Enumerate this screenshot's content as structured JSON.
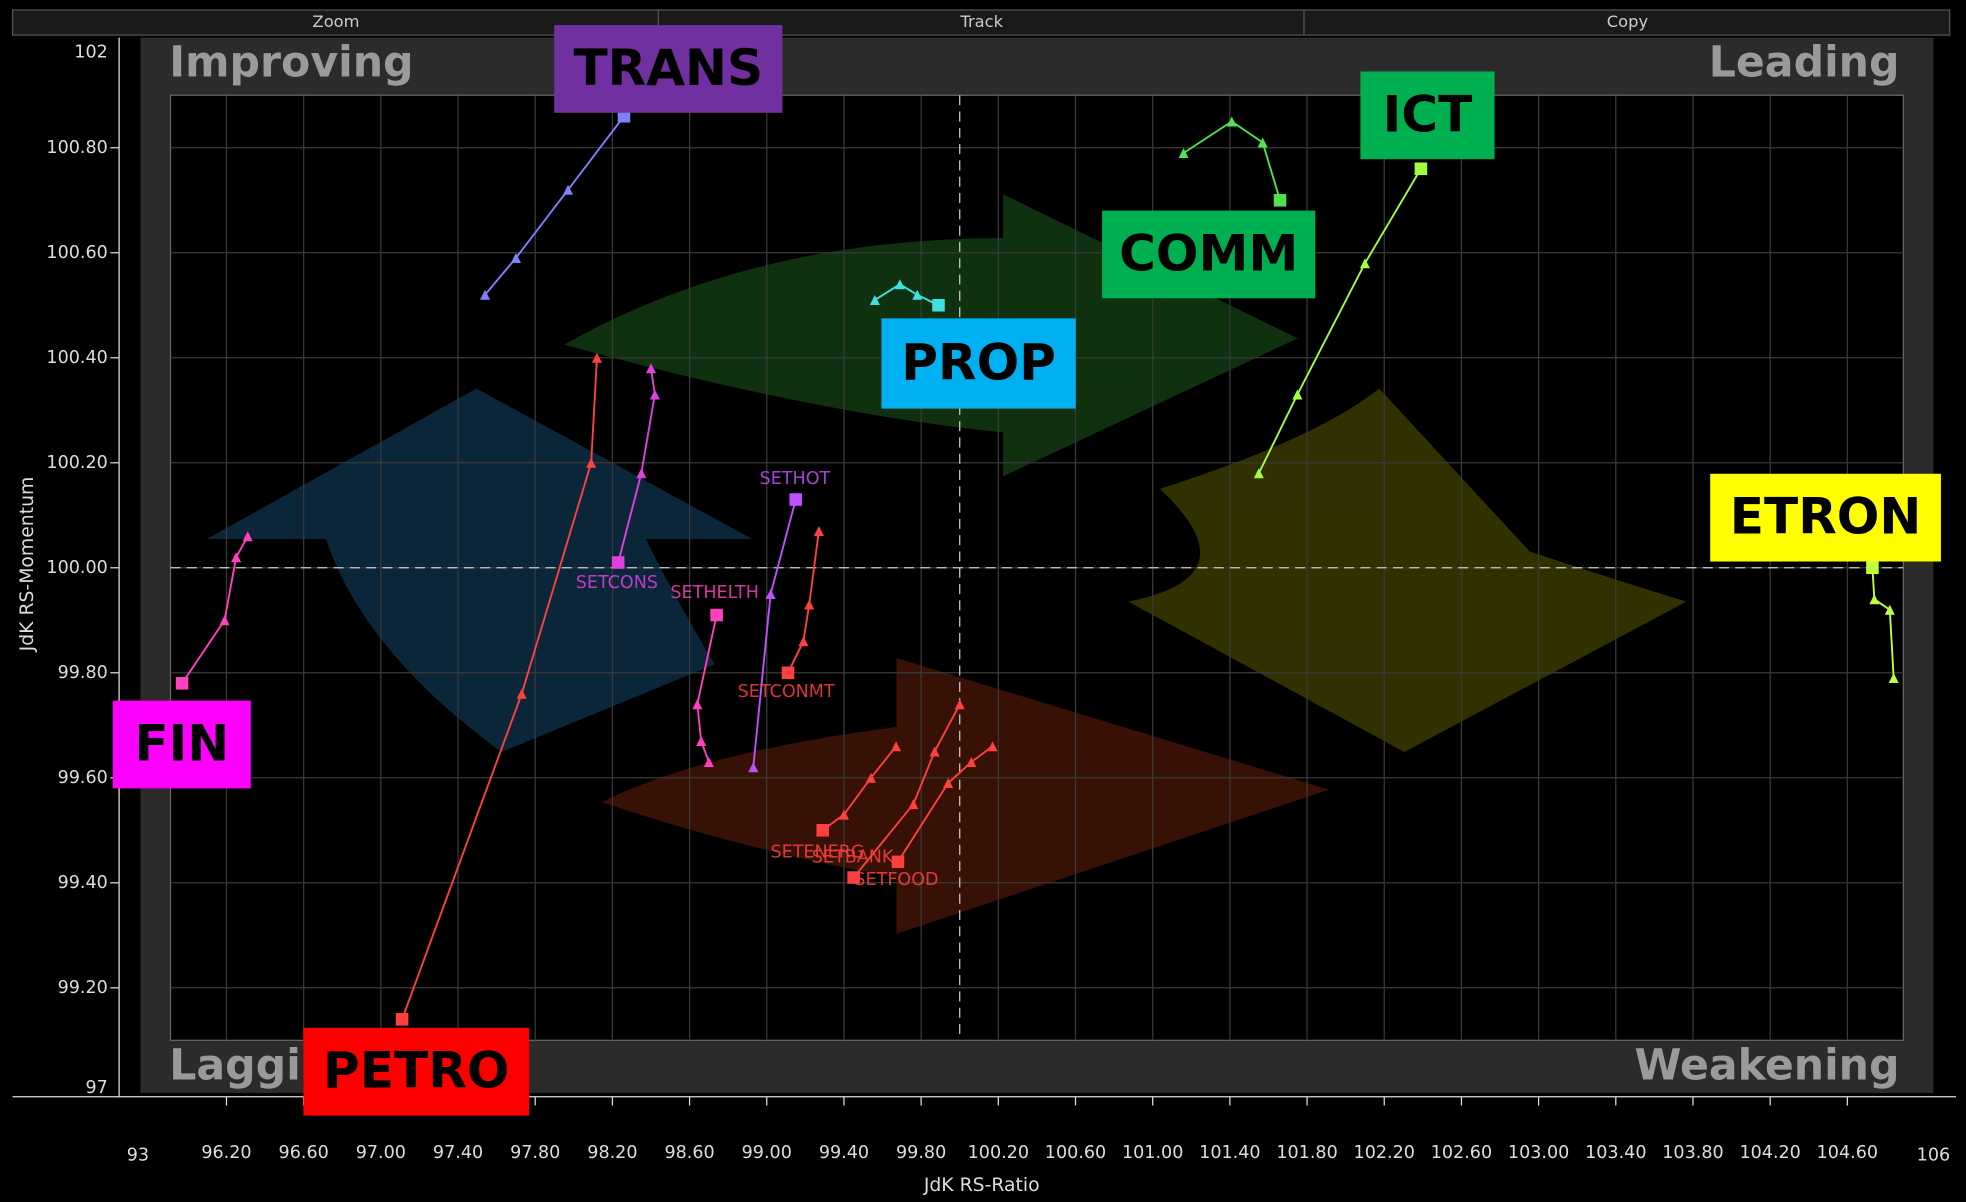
{
  "toolbar": [
    "Zoom",
    "Track",
    "Copy"
  ],
  "chart_data": {
    "type": "rrg",
    "x_label": "JdK RS-Ratio",
    "y_label": "JdK RS-Momentum",
    "quadrants": [
      "Improving",
      "Leading",
      "Lagging",
      "Weakening"
    ],
    "xlim": [
      95.91,
      104.89
    ],
    "ylim": [
      99.1,
      100.9
    ],
    "x_ends": [
      93,
      106
    ],
    "y_ends": [
      97,
      102
    ],
    "xcenter": 100,
    "ycenter": 100,
    "xticks": [
      {
        "value": 96.2,
        "label": "96.20"
      },
      {
        "value": 96.6,
        "label": "96.60"
      },
      {
        "value": 97.0,
        "label": "97.00"
      },
      {
        "value": 97.4,
        "label": "97.40"
      },
      {
        "value": 97.8,
        "label": "97.80"
      },
      {
        "value": 98.2,
        "label": "98.20"
      },
      {
        "value": 98.6,
        "label": "98.60"
      },
      {
        "value": 99.0,
        "label": "99.00"
      },
      {
        "value": 99.4,
        "label": "99.40"
      },
      {
        "value": 99.8,
        "label": "99.80"
      },
      {
        "value": 100.2,
        "label": "100.20"
      },
      {
        "value": 100.6,
        "label": "100.60"
      },
      {
        "value": 101.0,
        "label": "101.00"
      },
      {
        "value": 101.4,
        "label": "101.40"
      },
      {
        "value": 101.8,
        "label": "101.80"
      },
      {
        "value": 102.2,
        "label": "102.20"
      },
      {
        "value": 102.6,
        "label": "102.60"
      },
      {
        "value": 103.0,
        "label": "103.00"
      },
      {
        "value": 103.4,
        "label": "103.40"
      },
      {
        "value": 103.8,
        "label": "103.80"
      },
      {
        "value": 104.2,
        "label": "104.20"
      },
      {
        "value": 104.6,
        "label": "104.60"
      }
    ],
    "yticks": [
      {
        "value": 99.2,
        "label": "99.20"
      },
      {
        "value": 99.4,
        "label": "99.40"
      },
      {
        "value": 99.6,
        "label": "99.60"
      },
      {
        "value": 99.8,
        "label": "99.80"
      },
      {
        "value": 100.0,
        "label": "100.00"
      },
      {
        "value": 100.2,
        "label": "100.20"
      },
      {
        "value": 100.4,
        "label": "100.40"
      },
      {
        "value": 100.6,
        "label": "100.60"
      },
      {
        "value": 100.8,
        "label": "100.80"
      }
    ],
    "series": [
      {
        "name": "TRANS",
        "color": "#8080ff",
        "label_color": "#7030a0",
        "x": [
          97.54,
          97.7,
          97.97,
          98.26
        ],
        "y": [
          100.52,
          100.59,
          100.72,
          100.86
        ]
      },
      {
        "name": "PROP",
        "color": "#40e0e0",
        "label_color": "#00b0f0",
        "x": [
          99.56,
          99.69,
          99.78,
          99.89
        ],
        "y": [
          100.51,
          100.54,
          100.52,
          100.5
        ]
      },
      {
        "name": "COMM",
        "color": "#50e050",
        "label_color": "#00b050",
        "x": [
          101.16,
          101.41,
          101.57,
          101.66
        ],
        "y": [
          100.79,
          100.85,
          100.81,
          100.7
        ]
      },
      {
        "name": "ICT",
        "color": "#a0ff40",
        "label_color": "#00b050",
        "x": [
          101.55,
          101.75,
          102.1,
          102.39
        ],
        "y": [
          100.18,
          100.33,
          100.58,
          100.76
        ]
      },
      {
        "name": "ETRON",
        "color": "#c0ff40",
        "label_color": "#ffff00",
        "x": [
          104.84,
          104.82,
          104.74,
          104.73
        ],
        "y": [
          99.79,
          99.92,
          99.94,
          100.0
        ]
      },
      {
        "name": "FIN",
        "color": "#ff40c0",
        "label_color": "#ff00ff",
        "x": [
          96.31,
          96.25,
          96.19,
          95.97
        ],
        "y": [
          100.06,
          100.02,
          99.9,
          99.78
        ]
      },
      {
        "name": "PETRO",
        "color": "#ff4040",
        "label_color": "#ff0000",
        "x": [
          98.12,
          98.09,
          97.73,
          97.11
        ],
        "y": [
          100.4,
          100.2,
          99.76,
          99.14
        ]
      },
      {
        "name": "SETCONS",
        "color": "#e040e0",
        "x": [
          98.4,
          98.42,
          98.35,
          98.23
        ],
        "y": [
          100.38,
          100.33,
          100.18,
          100.01
        ]
      },
      {
        "name": "SETHOT",
        "color": "#c050ff",
        "x": [
          98.93,
          99.02,
          99.15
        ],
        "y": [
          99.62,
          99.95,
          100.13
        ]
      },
      {
        "name": "SETHELTH",
        "color": "#ff40c0",
        "x": [
          98.7,
          98.66,
          98.64,
          98.74
        ],
        "y": [
          99.63,
          99.67,
          99.74,
          99.91
        ]
      },
      {
        "name": "SETCONMT",
        "color": "#ff4040",
        "x": [
          99.27,
          99.22,
          99.19,
          99.11
        ],
        "y": [
          100.07,
          99.93,
          99.86,
          99.8
        ]
      },
      {
        "name": "SETENERG",
        "color": "#ff4040",
        "x": [
          99.67,
          99.54,
          99.4,
          99.29
        ],
        "y": [
          99.66,
          99.6,
          99.53,
          99.5
        ]
      },
      {
        "name": "SETBANK",
        "color": "#ff4040",
        "x": [
          100.0,
          99.87,
          99.76,
          99.45
        ],
        "y": [
          99.74,
          99.65,
          99.55,
          99.41
        ]
      },
      {
        "name": "SETFOOD",
        "color": "#ff4040",
        "x": [
          100.17,
          100.06,
          99.94,
          99.68
        ],
        "y": [
          99.66,
          99.63,
          99.59,
          99.44
        ]
      }
    ]
  }
}
